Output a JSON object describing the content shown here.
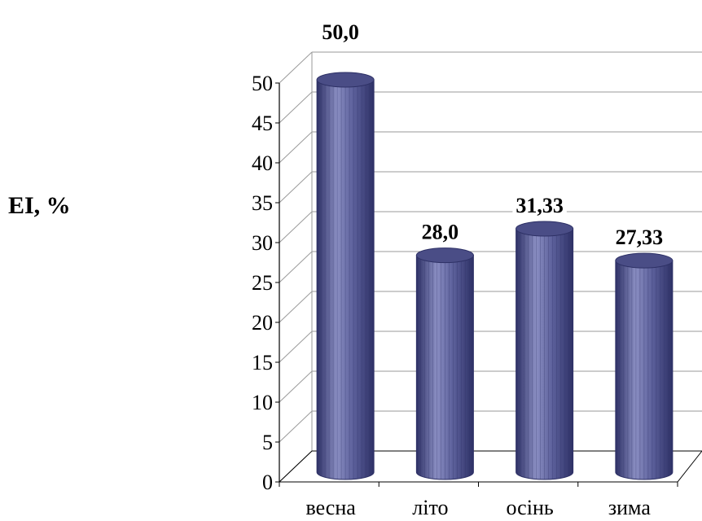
{
  "chart_data": {
    "type": "bar",
    "style": "3d-cylinder",
    "categories": [
      "весна",
      "літо",
      "осінь",
      "зима"
    ],
    "values": [
      50.0,
      28.0,
      31.33,
      27.33
    ],
    "data_labels": [
      "50,0",
      "28,0",
      "31,33",
      "27,33"
    ],
    "ylabel": "EI, %",
    "xlabel": "",
    "title": "",
    "ylim": [
      0,
      50
    ],
    "y_ticks": [
      0,
      5,
      10,
      15,
      20,
      25,
      30,
      35,
      40,
      45,
      50
    ],
    "grid": true,
    "legend": "none",
    "bar_color": "#5b5f9a",
    "bar_highlight": "#8a8ec2",
    "bar_shadow": "#2e3166",
    "top_color": "#4a4d86"
  }
}
